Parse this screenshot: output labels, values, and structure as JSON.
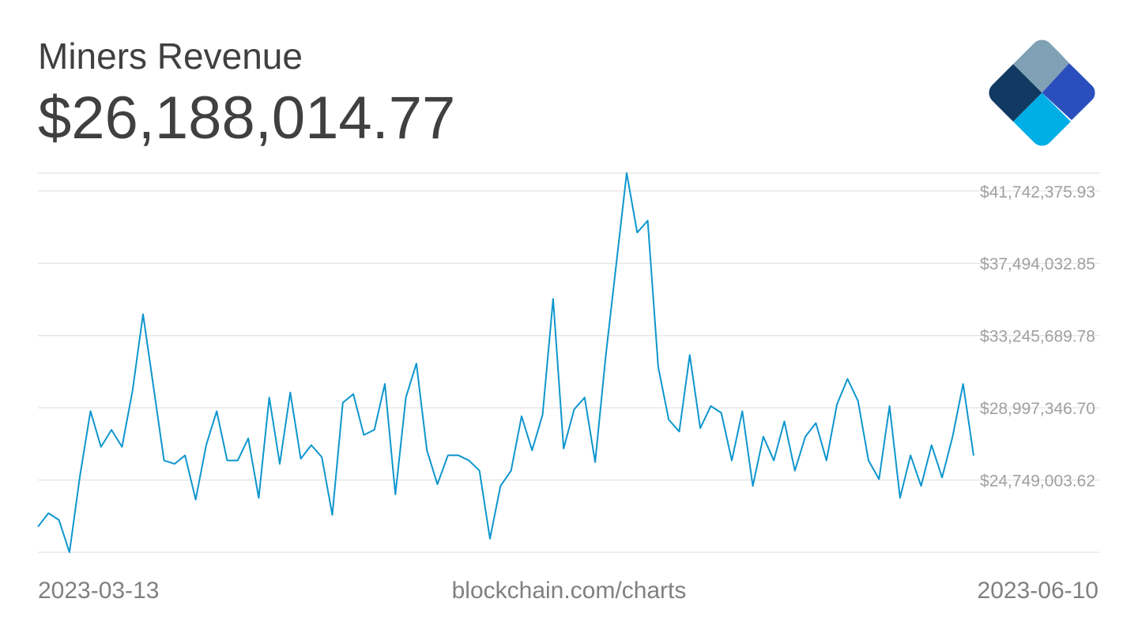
{
  "header": {
    "title": "Miners Revenue",
    "current_value": "$26,188,014.77"
  },
  "footer": {
    "start_date": "2023-03-13",
    "source": "blockchain.com/charts",
    "end_date": "2023-06-10"
  },
  "logo": {
    "icon": "blockchain-logo-icon",
    "colors": [
      "#7fa0b5",
      "#123962",
      "#2a4fbd",
      "#00aee6",
      "#b5d8ea"
    ]
  },
  "colors": {
    "line": "#0e96ce",
    "grid": "#dddddd",
    "tick_text": "#a0a0a0",
    "title_text": "#404040"
  },
  "chart_data": {
    "type": "line",
    "title": "Miners Revenue",
    "x_start": "2023-03-13",
    "x_end": "2023-06-10",
    "ylim": [
      20500660.54,
      42800000
    ],
    "yticks": [
      24749003.62,
      28997346.7,
      33245689.78,
      37494032.85,
      41742375.93
    ],
    "ytick_labels": [
      "$24,749,003.62",
      "$28,997,346.70",
      "$33,245,689.78",
      "$37,494,032.85",
      "$41,742,375.93"
    ],
    "grid": true,
    "legend": "none",
    "values": [
      22000000,
      22800000,
      22400000,
      20500000,
      25000000,
      28800000,
      26700000,
      27700000,
      26700000,
      30000000,
      34500000,
      30200000,
      25900000,
      25700000,
      26200000,
      23600000,
      26800000,
      28800000,
      25900000,
      25900000,
      27200000,
      23700000,
      29600000,
      25700000,
      29900000,
      26000000,
      26800000,
      26100000,
      22700000,
      29300000,
      29800000,
      27400000,
      27700000,
      30400000,
      23900000,
      29600000,
      31600000,
      26500000,
      24500000,
      26200000,
      26200000,
      25900000,
      25300000,
      21300000,
      24400000,
      25300000,
      28500000,
      26500000,
      28600000,
      35400000,
      26600000,
      28900000,
      29600000,
      25800000,
      32000000,
      37400000,
      42800000,
      39300000,
      40000000,
      31400000,
      28300000,
      27600000,
      32100000,
      27800000,
      29100000,
      28700000,
      25900000,
      28800000,
      24400000,
      27300000,
      25900000,
      28200000,
      25300000,
      27300000,
      28100000,
      25900000,
      29200000,
      30700000,
      29400000,
      25900000,
      24800000,
      29100000,
      23700000,
      26200000,
      24400000,
      26800000,
      24900000,
      27300000,
      30400000,
      26188014.77
    ]
  }
}
